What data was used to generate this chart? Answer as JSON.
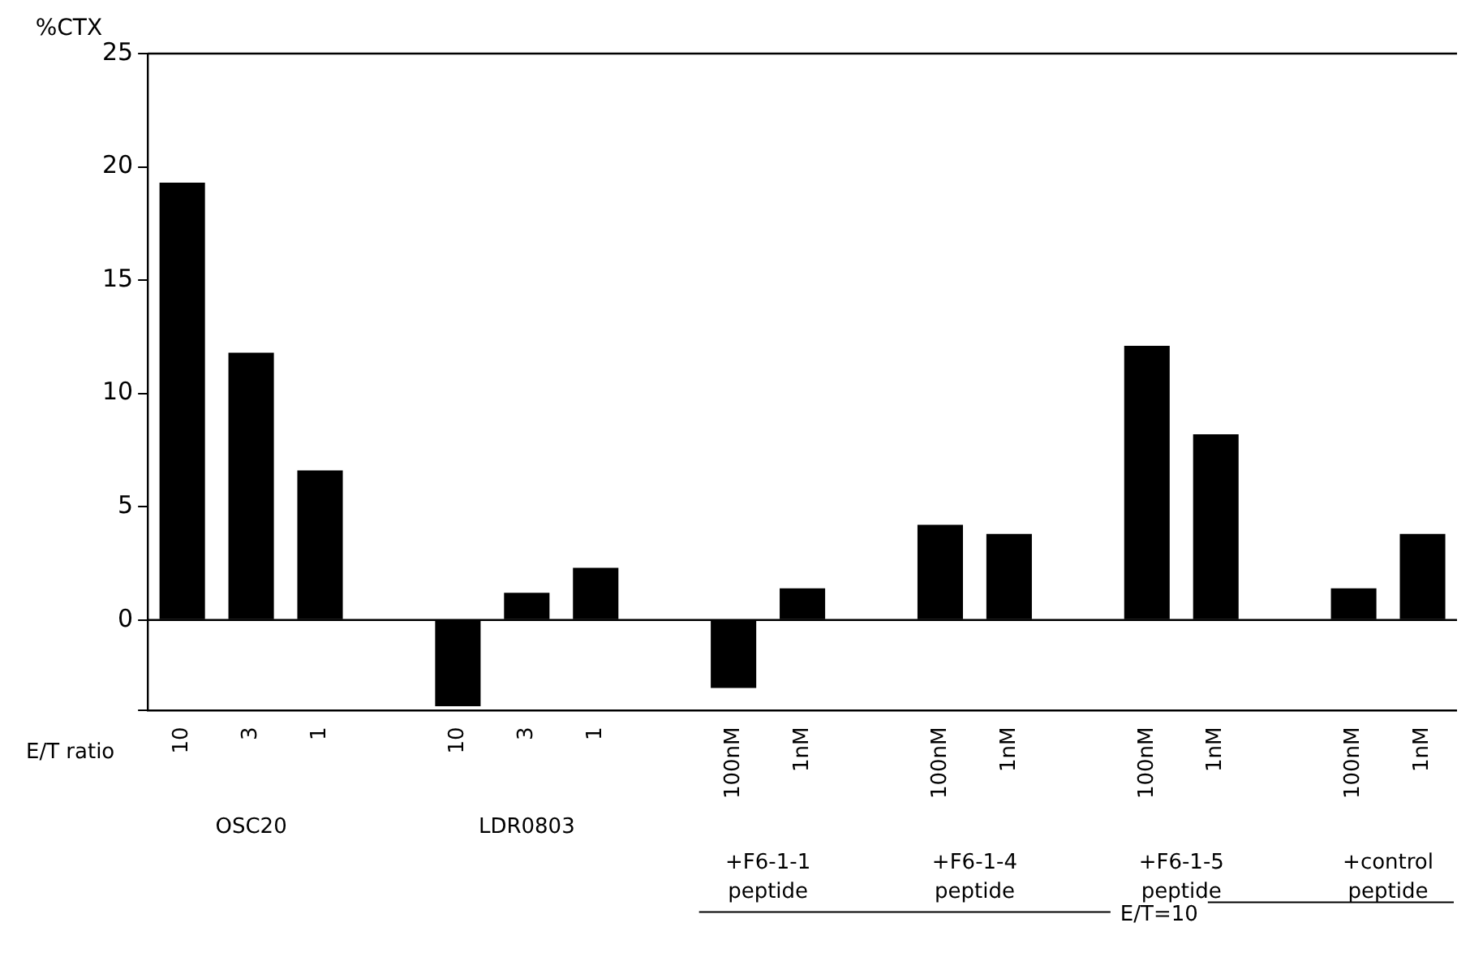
{
  "chart_data": {
    "type": "bar",
    "ylabel": "%CTX",
    "categories": [
      "10",
      "3",
      "1",
      null,
      "10",
      "3",
      "1",
      null,
      "100nM",
      "1nM",
      null,
      "100nM",
      "1nM",
      null,
      "100nM",
      "1nM",
      null,
      "100nM",
      "1nM"
    ],
    "values": [
      19.3,
      11.8,
      6.6,
      null,
      -3.8,
      1.2,
      2.3,
      null,
      -3.0,
      1.4,
      null,
      4.2,
      3.8,
      null,
      12.1,
      8.2,
      null,
      1.4,
      3.8
    ],
    "color": "#000000",
    "ylim": [
      -4,
      25
    ],
    "yticks": [
      {
        "value": -4,
        "label": null
      },
      0,
      5,
      10,
      15,
      20,
      25
    ],
    "grid": false,
    "ref_lines": [
      {
        "axis": "y",
        "value": 0
      }
    ],
    "annotations": [
      "E/T ratio",
      "OSC20",
      "LDR0803",
      "+F6-1-1 peptide",
      "+F6-1-4 peptide",
      "+F6-1-5 peptide",
      "+control peptide",
      "E/T=10"
    ]
  }
}
